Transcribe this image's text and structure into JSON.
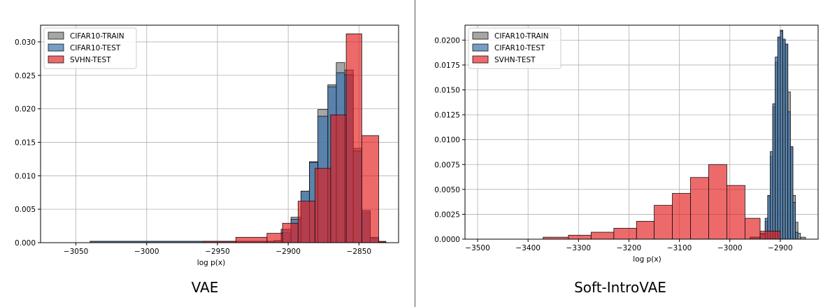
{
  "panels": [
    {
      "caption": "VAE",
      "chart_data": {
        "type": "histogram",
        "xlabel": "log p(x)",
        "ylabel": "",
        "xlim": [
          -3075,
          -2822
        ],
        "ylim": [
          0,
          0.0325
        ],
        "xticks": [
          -3050,
          -3000,
          -2950,
          -2900,
          -2850
        ],
        "xtick_labels": [
          "−3050",
          "−3000",
          "−2950",
          "−2900",
          "−2850"
        ],
        "yticks": [
          0,
          0.005,
          0.01,
          0.015,
          0.02,
          0.025,
          0.03
        ],
        "ytick_labels": [
          "0.000",
          "0.005",
          "0.010",
          "0.015",
          "0.020",
          "0.025",
          "0.030"
        ],
        "grid": true,
        "legend_position": "top-left",
        "series": [
          {
            "name": "CIFAR10-TRAIN",
            "color": "#808080",
            "bins": [
              [
                -3040,
                -2910,
                0.0002
              ],
              [
                -2910,
                -2905,
                0.0003
              ],
              [
                -2905,
                -2898,
                0.0015
              ],
              [
                -2898,
                -2891,
                0.0038
              ],
              [
                -2891,
                -2885,
                0.0077
              ],
              [
                -2885,
                -2879,
                0.0121
              ],
              [
                -2879,
                -2872,
                0.0199
              ],
              [
                -2872,
                -2866,
                0.0236
              ],
              [
                -2866,
                -2860,
                0.0269
              ],
              [
                -2860,
                -2854,
                0.0258
              ],
              [
                -2854,
                -2848,
                0.0141
              ],
              [
                -2848,
                -2842,
                0.0045
              ],
              [
                -2842,
                -2836,
                0.0007
              ],
              [
                -2836,
                -2831,
                0.0001
              ]
            ]
          },
          {
            "name": "CIFAR10-TEST",
            "color": "#3b75af",
            "bins": [
              [
                -3040,
                -2910,
                0.0002
              ],
              [
                -2910,
                -2905,
                0.0003
              ],
              [
                -2905,
                -2898,
                0.002
              ],
              [
                -2898,
                -2891,
                0.0035
              ],
              [
                -2891,
                -2885,
                0.0077
              ],
              [
                -2885,
                -2879,
                0.012
              ],
              [
                -2879,
                -2872,
                0.0189
              ],
              [
                -2872,
                -2866,
                0.0233
              ],
              [
                -2866,
                -2860,
                0.0254
              ],
              [
                -2860,
                -2854,
                0.0251
              ],
              [
                -2854,
                -2848,
                0.0137
              ],
              [
                -2848,
                -2842,
                0.0048
              ],
              [
                -2842,
                -2836,
                0.0008
              ],
              [
                -2836,
                -2831,
                0.0001
              ]
            ]
          },
          {
            "name": "SVHN-TEST",
            "color": "#e31a1c",
            "bins": [
              [
                -2960,
                -2937,
                0.0002
              ],
              [
                -2937,
                -2915,
                0.0008
              ],
              [
                -2915,
                -2904,
                0.0014
              ],
              [
                -2904,
                -2893,
                0.0029
              ],
              [
                -2893,
                -2881,
                0.0062
              ],
              [
                -2881,
                -2870,
                0.0111
              ],
              [
                -2870,
                -2859,
                0.0191
              ],
              [
                -2859,
                -2848,
                0.0312
              ],
              [
                -2848,
                -2836,
                0.016
              ],
              [
                -2836,
                -2831,
                0.0002
              ]
            ]
          }
        ]
      }
    },
    {
      "caption": "Soft-IntroVAE",
      "chart_data": {
        "type": "histogram",
        "xlabel": "log p(x)",
        "ylabel": "",
        "xlim": [
          -3525,
          -2825
        ],
        "ylim": [
          0,
          0.0215
        ],
        "xticks": [
          -3500,
          -3400,
          -3300,
          -3200,
          -3100,
          -3000,
          -2900
        ],
        "xtick_labels": [
          "−3500",
          "−3400",
          "−3300",
          "−3200",
          "−3100",
          "−3000",
          "−2900"
        ],
        "yticks": [
          0,
          0.0025,
          0.005,
          0.0075,
          0.01,
          0.0125,
          0.015,
          0.0175,
          0.02
        ],
        "ytick_labels": [
          "0.0000",
          "0.0025",
          "0.0050",
          "0.0075",
          "0.0100",
          "0.0125",
          "0.0150",
          "0.0175",
          "0.0200"
        ],
        "grid": true,
        "legend_position": "top-left",
        "series": [
          {
            "name": "CIFAR10-TRAIN",
            "color": "#808080",
            "bins": [
              [
                -2960,
                -2940,
                0.0002
              ],
              [
                -2940,
                -2930,
                0.0006
              ],
              [
                -2930,
                -2925,
                0.0018
              ],
              [
                -2925,
                -2920,
                0.0043
              ],
              [
                -2920,
                -2915,
                0.0083
              ],
              [
                -2915,
                -2910,
                0.0133
              ],
              [
                -2910,
                -2905,
                0.0178
              ],
              [
                -2905,
                -2900,
                0.0203
              ],
              [
                -2900,
                -2895,
                0.021
              ],
              [
                -2895,
                -2890,
                0.02
              ],
              [
                -2890,
                -2885,
                0.0196
              ],
              [
                -2885,
                -2880,
                0.0148
              ],
              [
                -2880,
                -2875,
                0.0092
              ],
              [
                -2875,
                -2870,
                0.0044
              ],
              [
                -2870,
                -2865,
                0.0017
              ],
              [
                -2865,
                -2860,
                0.0006
              ],
              [
                -2860,
                -2850,
                0.0002
              ]
            ]
          },
          {
            "name": "CIFAR10-TEST",
            "color": "#3b75af",
            "bins": [
              [
                -2960,
                -2940,
                0.0002
              ],
              [
                -2940,
                -2930,
                0.0005
              ],
              [
                -2930,
                -2925,
                0.0021
              ],
              [
                -2925,
                -2920,
                0.0044
              ],
              [
                -2920,
                -2915,
                0.0088
              ],
              [
                -2915,
                -2910,
                0.0136
              ],
              [
                -2910,
                -2905,
                0.0183
              ],
              [
                -2905,
                -2900,
                0.0203
              ],
              [
                -2900,
                -2895,
                0.0209
              ],
              [
                -2895,
                -2890,
                0.0201
              ],
              [
                -2890,
                -2885,
                0.0196
              ],
              [
                -2885,
                -2880,
                0.0128
              ],
              [
                -2880,
                -2875,
                0.0093
              ],
              [
                -2875,
                -2870,
                0.0037
              ],
              [
                -2870,
                -2865,
                0.0007
              ]
            ]
          },
          {
            "name": "SVHN-TEST",
            "color": "#e31a1c",
            "bins": [
              [
                -3370,
                -3320,
                0.0002
              ],
              [
                -3320,
                -3275,
                0.0004
              ],
              [
                -3275,
                -3230,
                0.0007
              ],
              [
                -3230,
                -3185,
                0.0011
              ],
              [
                -3185,
                -3150,
                0.0018
              ],
              [
                -3150,
                -3114,
                0.0034
              ],
              [
                -3114,
                -3078,
                0.0046
              ],
              [
                -3078,
                -3042,
                0.0062
              ],
              [
                -3042,
                -3006,
                0.0075
              ],
              [
                -3006,
                -2970,
                0.0054
              ],
              [
                -2970,
                -2940,
                0.0021
              ],
              [
                -2940,
                -2900,
                0.0008
              ]
            ]
          }
        ]
      }
    }
  ]
}
